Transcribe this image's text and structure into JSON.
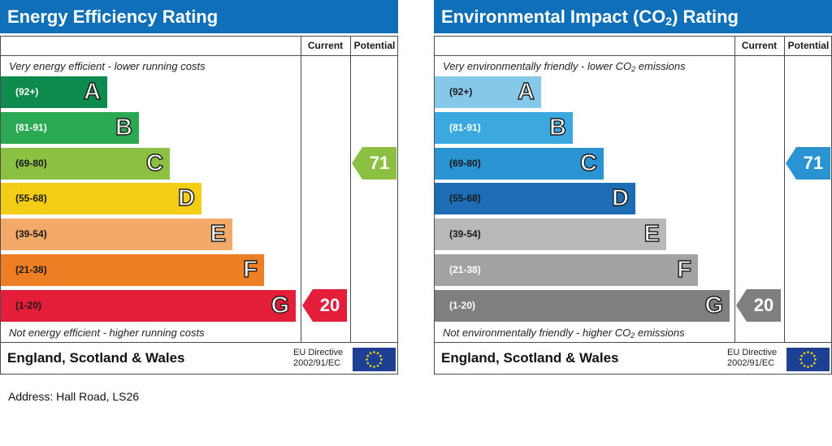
{
  "energy": {
    "title": "Energy Efficiency Rating",
    "col_current": "Current",
    "col_potential": "Potential",
    "top_caption": "Very energy efficient - lower running costs",
    "bottom_caption": "Not energy efficient - higher running costs",
    "region": "England, Scotland & Wales",
    "eu_line1": "EU Directive",
    "eu_line2": "2002/91/EC"
  },
  "environment": {
    "title_main": "Environmental Impact (CO",
    "title_sub": "2",
    "title_end": ") Rating",
    "col_current": "Current",
    "col_potential": "Potential",
    "top_caption_main": "Very environmentally friendly - lower CO",
    "top_caption_sub": "2",
    "top_caption_end": " emissions",
    "bottom_caption_main": "Not environmentally friendly - higher CO",
    "bottom_caption_sub": "2",
    "bottom_caption_end": " emissions",
    "region": "England, Scotland & Wales",
    "eu_line1": "EU Directive",
    "eu_line2": "2002/91/EC"
  },
  "address": "Address: Hall Road, LS26",
  "chart_data": [
    {
      "type": "bar",
      "title": "Energy Efficiency Rating",
      "categories": [
        "A",
        "B",
        "C",
        "D",
        "E",
        "F",
        "G"
      ],
      "ranges": [
        "(92+)",
        "(81-91)",
        "(69-80)",
        "(55-68)",
        "(39-54)",
        "(21-38)",
        "(1-20)"
      ],
      "colors": [
        "#0d8a4e",
        "#2aa952",
        "#8cc043",
        "#f4cd17",
        "#f2a96a",
        "#ee7e23",
        "#e41d38"
      ],
      "range_text_colors": [
        "#ffffff",
        "#ffffff",
        "#1a1a1a",
        "#1a1a1a",
        "#1a1a1a",
        "#1a1a1a",
        "#1a1a1a"
      ],
      "current": 20,
      "current_band": "G",
      "current_color": "#e41d38",
      "potential": 71,
      "potential_band": "C",
      "potential_color": "#8cc043"
    },
    {
      "type": "bar",
      "title": "Environmental Impact (CO2) Rating",
      "categories": [
        "A",
        "B",
        "C",
        "D",
        "E",
        "F",
        "G"
      ],
      "ranges": [
        "(92+)",
        "(81-91)",
        "(69-80)",
        "(55-68)",
        "(39-54)",
        "(21-38)",
        "(1-20)"
      ],
      "colors": [
        "#86c8ea",
        "#3ba8df",
        "#2a93d2",
        "#1c6db4",
        "#b9b9b9",
        "#a3a3a3",
        "#7f7f7f"
      ],
      "range_text_colors": [
        "#1a1a1a",
        "#ffffff",
        "#1a1a1a",
        "#1a1a1a",
        "#1a1a1a",
        "#ffffff",
        "#ffffff"
      ],
      "current": 20,
      "current_band": "G",
      "current_color": "#7f7f7f",
      "potential": 71,
      "potential_band": "C",
      "potential_color": "#2a93d2"
    }
  ]
}
